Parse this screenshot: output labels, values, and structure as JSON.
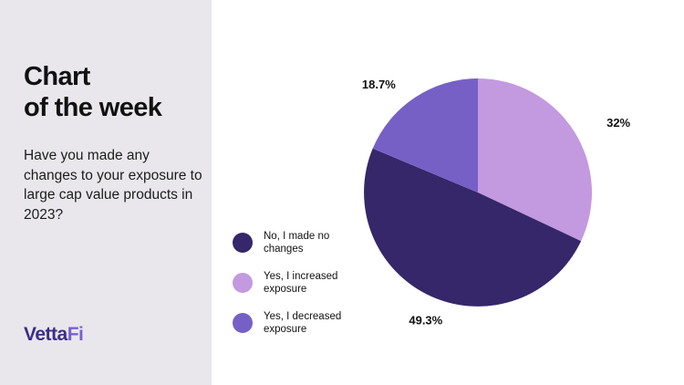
{
  "header": {
    "title_line1": "Chart",
    "title_line2": "of the week"
  },
  "question": "Have you made any changes to your exposure to large cap value products in 2023?",
  "brand": {
    "logo_part1": "Vetta",
    "logo_part2": "Fi",
    "color_primary": "#3b2d8a",
    "color_accent": "#7a5fd0"
  },
  "chart_data": {
    "type": "pie",
    "start_angle_deg": 0,
    "slices": [
      {
        "label": "Yes, I increased exposure",
        "value": 32,
        "display": "32%",
        "color": "#c399e0"
      },
      {
        "label": "No, I made no changes",
        "value": 49.3,
        "display": "49.3%",
        "color": "#36266a"
      },
      {
        "label": "Yes, I decreased exposure",
        "value": 18.7,
        "display": "18.7%",
        "color": "#7660c6"
      }
    ]
  },
  "legend": [
    {
      "label": "No, I made no changes",
      "color": "#36266a"
    },
    {
      "label": "Yes, I increased exposure",
      "color": "#c399e0"
    },
    {
      "label": "Yes, I decreased exposure",
      "color": "#7660c6"
    }
  ]
}
